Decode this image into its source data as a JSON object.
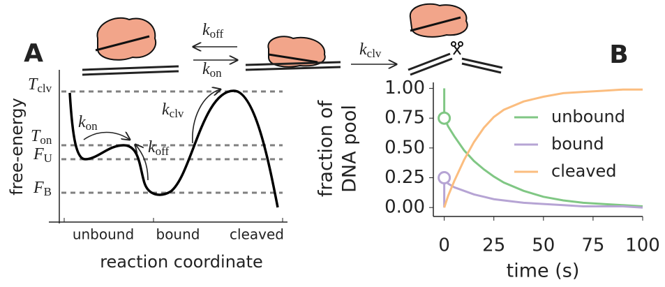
{
  "panel_a": {
    "panel_label": "A",
    "y_axis_label": "free-energy",
    "x_axis_label": "reaction coordinate",
    "states": [
      "unbound",
      "bound",
      "cleaved"
    ],
    "levels": [
      {
        "symbol": "T",
        "sub": "clv"
      },
      {
        "symbol": "T",
        "sub": "on"
      },
      {
        "symbol": "F",
        "sub": "U"
      },
      {
        "symbol": "F",
        "sub": "B"
      }
    ],
    "rates": [
      {
        "symbol": "k",
        "sub": "on"
      },
      {
        "symbol": "k",
        "sub": "off"
      },
      {
        "symbol": "k",
        "sub": "clv"
      }
    ],
    "schematic_rates": [
      {
        "symbol": "k",
        "sub": "off"
      },
      {
        "symbol": "k",
        "sub": "on"
      },
      {
        "symbol": "k",
        "sub": "clv"
      }
    ]
  },
  "chart_data": {
    "type": "line",
    "panel_label": "B",
    "xlabel": "time (s)",
    "ylabel": [
      "fraction of",
      "DNA pool"
    ],
    "x": [
      0,
      0,
      2,
      5,
      10,
      15,
      20,
      25,
      30,
      40,
      50,
      60,
      70,
      80,
      90,
      100
    ],
    "series": [
      {
        "name": "unbound",
        "color": "#80c784",
        "marker": [
          0,
          0.75
        ],
        "values": [
          1.0,
          0.75,
          0.68,
          0.6,
          0.48,
          0.39,
          0.32,
          0.26,
          0.21,
          0.14,
          0.09,
          0.06,
          0.04,
          0.03,
          0.02,
          0.01
        ]
      },
      {
        "name": "bound",
        "color": "#b6a4d4",
        "marker": [
          0,
          0.25
        ],
        "values": [
          0,
          0.25,
          0.2,
          0.17,
          0.14,
          0.11,
          0.09,
          0.07,
          0.06,
          0.04,
          0.03,
          0.02,
          0.01,
          0.01,
          0.01,
          0.0
        ]
      },
      {
        "name": "cleaved",
        "color": "#fbbd7f",
        "values": [
          0,
          0,
          0.1,
          0.22,
          0.4,
          0.55,
          0.67,
          0.76,
          0.82,
          0.89,
          0.93,
          0.96,
          0.97,
          0.98,
          0.99,
          0.99
        ]
      }
    ],
    "xlim": [
      -5.5,
      100
    ],
    "ylim": [
      -0.075,
      1.05
    ],
    "xticks": [
      0,
      25,
      50,
      75,
      100
    ],
    "yticks": [
      {
        "value": 0,
        "label": "0.00"
      },
      {
        "value": 0.25,
        "label": "0.25"
      },
      {
        "value": 0.5,
        "label": "0.50"
      },
      {
        "value": 0.75,
        "label": "0.75"
      },
      {
        "value": 1,
        "label": "1.00"
      }
    ],
    "legend": "center right",
    "grid": false
  }
}
